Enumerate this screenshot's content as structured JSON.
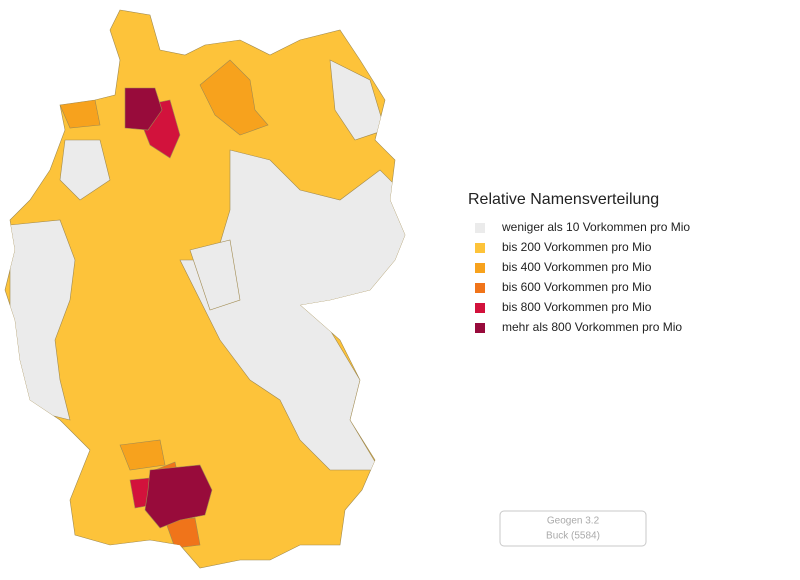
{
  "legend": {
    "title": "Relative Namensverteilung",
    "items": [
      {
        "label": "weniger als  10 Vorkommen pro Mio",
        "color": "#ebebeb"
      },
      {
        "label": "bis 200 Vorkommen pro Mio",
        "color": "#fdc33a"
      },
      {
        "label": "bis 400 Vorkommen pro Mio",
        "color": "#f7a21d"
      },
      {
        "label": "bis 600 Vorkommen pro Mio",
        "color": "#f0741a"
      },
      {
        "label": "bis 800 Vorkommen pro Mio",
        "color": "#d2123c"
      },
      {
        "label": "mehr als 800 Vorkommen pro Mio",
        "color": "#980b3b"
      }
    ]
  },
  "footer": {
    "line1": "Geogen 3.2",
    "line2": "Buck (5584)"
  }
}
